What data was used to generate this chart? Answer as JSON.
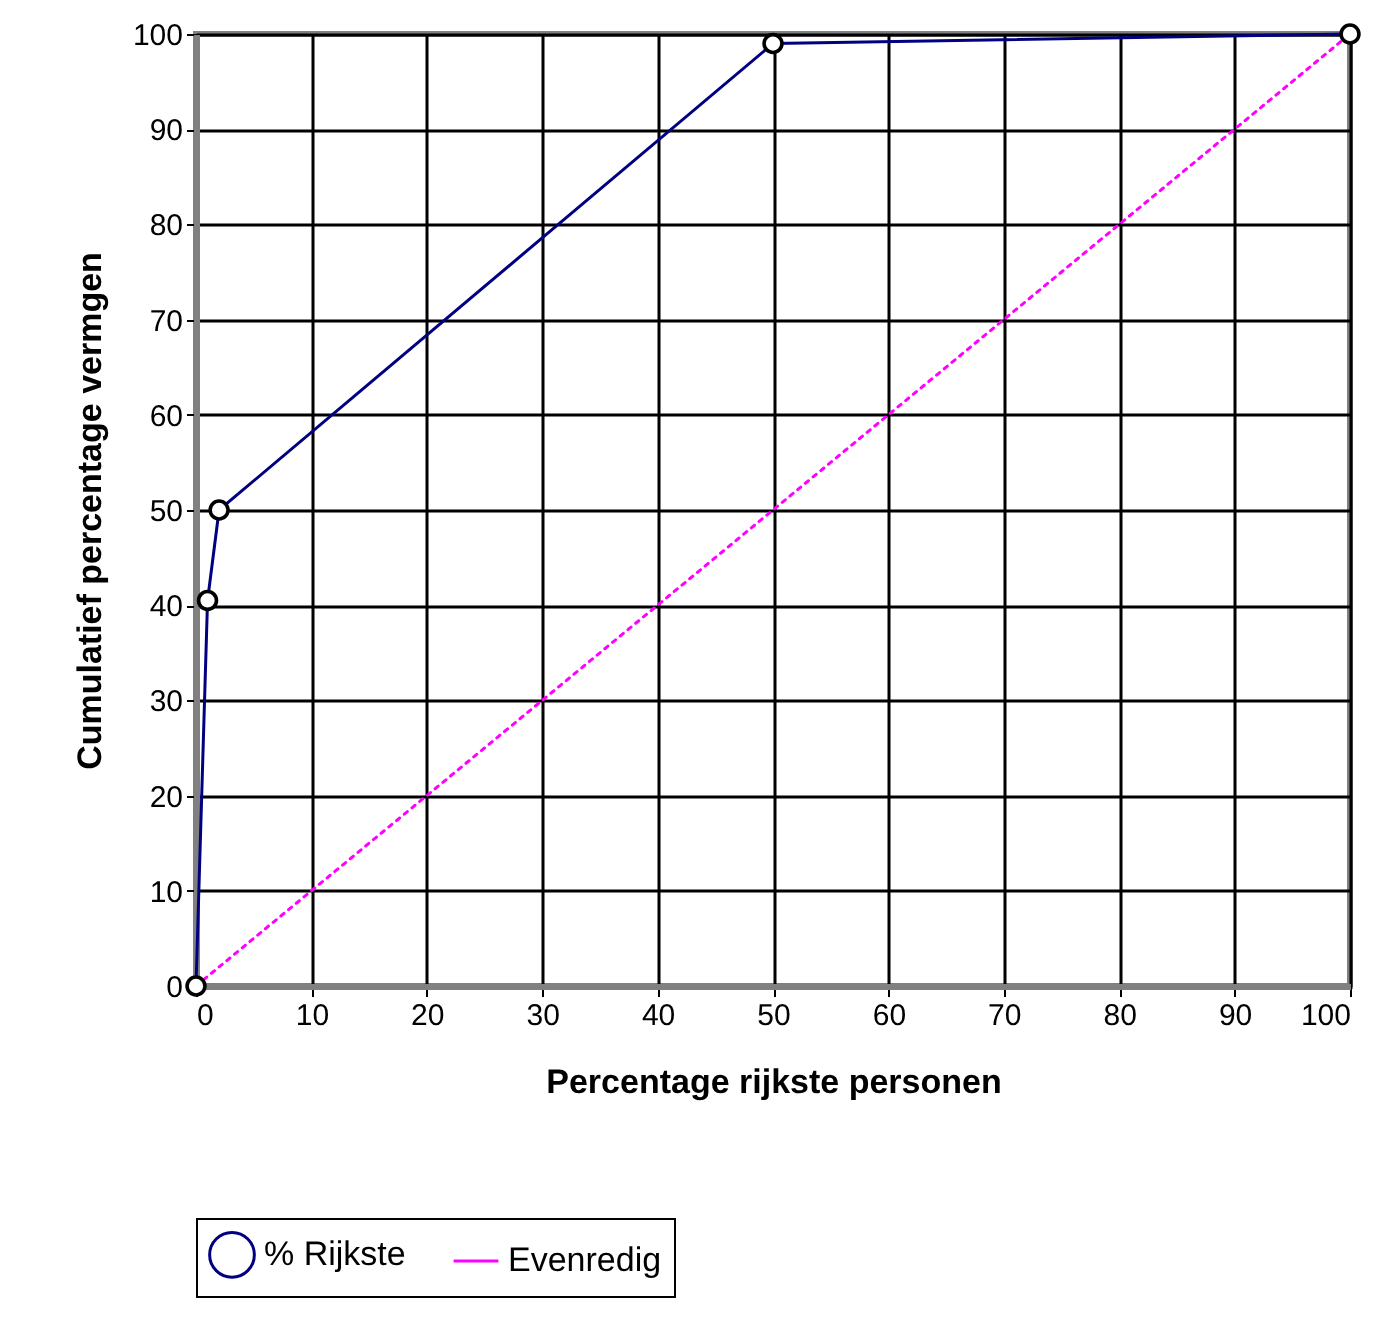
{
  "chart_data": {
    "type": "line",
    "xlabel": "Percentage rijkste personen",
    "ylabel": "Cumulatief percentage vermgen",
    "xlim": [
      0,
      100
    ],
    "ylim": [
      0,
      100
    ],
    "xticks": [
      0,
      10,
      20,
      30,
      40,
      50,
      60,
      70,
      80,
      90,
      100
    ],
    "yticks": [
      0,
      10,
      20,
      30,
      40,
      50,
      60,
      70,
      80,
      90,
      100
    ],
    "grid": true,
    "legend": "bottom",
    "series": [
      {
        "name": "% Rijkste",
        "color": "#000080",
        "x": [
          0,
          1,
          2,
          50,
          100
        ],
        "values": [
          0,
          40.5,
          50,
          99,
          100
        ],
        "marker": "circle",
        "line_style": "solid"
      },
      {
        "name": "Evenredig",
        "color": "#ff00ff",
        "x": [
          0,
          1,
          2,
          50,
          100
        ],
        "values": [
          0,
          1,
          2,
          50,
          100
        ],
        "marker": "none",
        "line_style": "dotted"
      }
    ]
  }
}
